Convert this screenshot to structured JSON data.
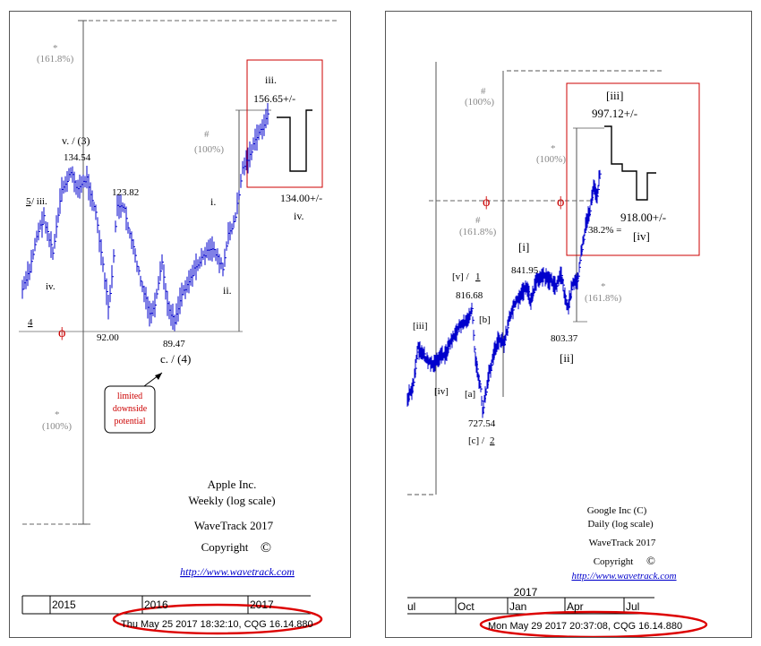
{
  "chart_data": [
    {
      "type": "line",
      "title": "Apple Inc.",
      "subtitle": "Weekly (log scale)",
      "credit": "WaveTrack 2017",
      "copyright": "Copyright",
      "copyright_symbol": "©",
      "url": "http://www.wavetrack.com",
      "x_tick_labels": [
        "2015",
        "2016",
        "2017"
      ],
      "timestamp": "Thu May 25 2017 18:32:10, CQG 16.14.880",
      "series_color": "#0000cc",
      "points": [
        {
          "label": "4",
          "value": null
        },
        {
          "label": "iv.",
          "value": null
        },
        {
          "label": "5 / iii.",
          "value": null
        },
        {
          "label": "v. / (3)",
          "value": 134.54
        },
        {
          "label": "123.82",
          "value": 123.82
        },
        {
          "label": "92.00",
          "value": 92.0
        },
        {
          "label": "89.47",
          "value": 89.47
        },
        {
          "label": "c. / (4)",
          "value": 89.47
        },
        {
          "label": "i.",
          "value": null
        },
        {
          "label": "ii.",
          "value": null
        },
        {
          "label": "iii.",
          "value": 156.65
        }
      ],
      "texts": {
        "label_4": "4",
        "label_iv": "iv.",
        "label_5": "5",
        "label_iii_sep": " / iii.",
        "label_v3": "v. / (3)",
        "val_134": "134.54",
        "val_123": "123.82",
        "val_92": "92.00",
        "val_89": "89.47",
        "label_c4": "c. / (4)",
        "label_i": "i.",
        "label_ii": "ii.",
        "label_iii": "iii.",
        "target_156": "156.65+/-",
        "target_134": "134.00+/-",
        "label_iv_proj": "iv.",
        "fib_star": "*",
        "fib_1618": "(161.8%)",
        "fib_hash": "#",
        "fib_100_a": "(100%)",
        "fib_star_b": "*",
        "fib_100_b": "(100%)",
        "phi": "ϕ",
        "callout_1": "limited",
        "callout_2": "downside",
        "callout_3": "potential"
      }
    },
    {
      "type": "line",
      "title": "Google Inc (C)",
      "subtitle": "Daily (log scale)",
      "credit": "WaveTrack 2017",
      "copyright": "Copyright",
      "copyright_symbol": "©",
      "url": "http://www.wavetrack.com",
      "x_tick_labels": [
        "ul",
        "Oct",
        "Jan",
        "Apr",
        "Jul"
      ],
      "year_label": "2017",
      "timestamp": "Mon May 29 2017 20:37:08, CQG 16.14.880",
      "series_color": "#0000cc",
      "points": [
        {
          "label": "[iii]",
          "value": null
        },
        {
          "label": "[iv]",
          "value": null
        },
        {
          "label": "[v] / 1",
          "value": 816.68
        },
        {
          "label": "[a]",
          "value": null
        },
        {
          "label": "[c] / 2",
          "value": 727.54
        },
        {
          "label": "[b]",
          "value": null
        },
        {
          "label": "[i]",
          "value": 841.95
        },
        {
          "label": "[ii]",
          "value": 803.37
        },
        {
          "label": "[iii]",
          "value": 997.12
        }
      ],
      "texts": {
        "label_iii_early": "[iii]",
        "label_iv_early": "[iv]",
        "label_v1": "[v] / ",
        "label_v1_num": "1",
        "val_816": "816.68",
        "label_a": "[a]",
        "val_727": "727.54",
        "label_c2": "[c] / ",
        "label_c2_num": "2",
        "label_b": "[b]",
        "label_i": "[i]",
        "val_841": "841.95",
        "val_803": "803.37",
        "label_ii": "[ii]",
        "label_iii": "[iii]",
        "target_997": "997.12+/-",
        "target_918": "918.00+/-",
        "label_iv": "[iv]",
        "retrace": "38.2% =",
        "fib_hash_a": "#",
        "fib_100_a": "(100%)",
        "fib_hash_b": "#",
        "fib_1618_a": "(161.8%)",
        "fib_star_a": "*",
        "fib_100_b": "(100%)",
        "fib_star_b": "*",
        "fib_1618_b": "(161.8%)",
        "phi_a": "ϕ",
        "phi_b": "ϕ"
      }
    }
  ]
}
